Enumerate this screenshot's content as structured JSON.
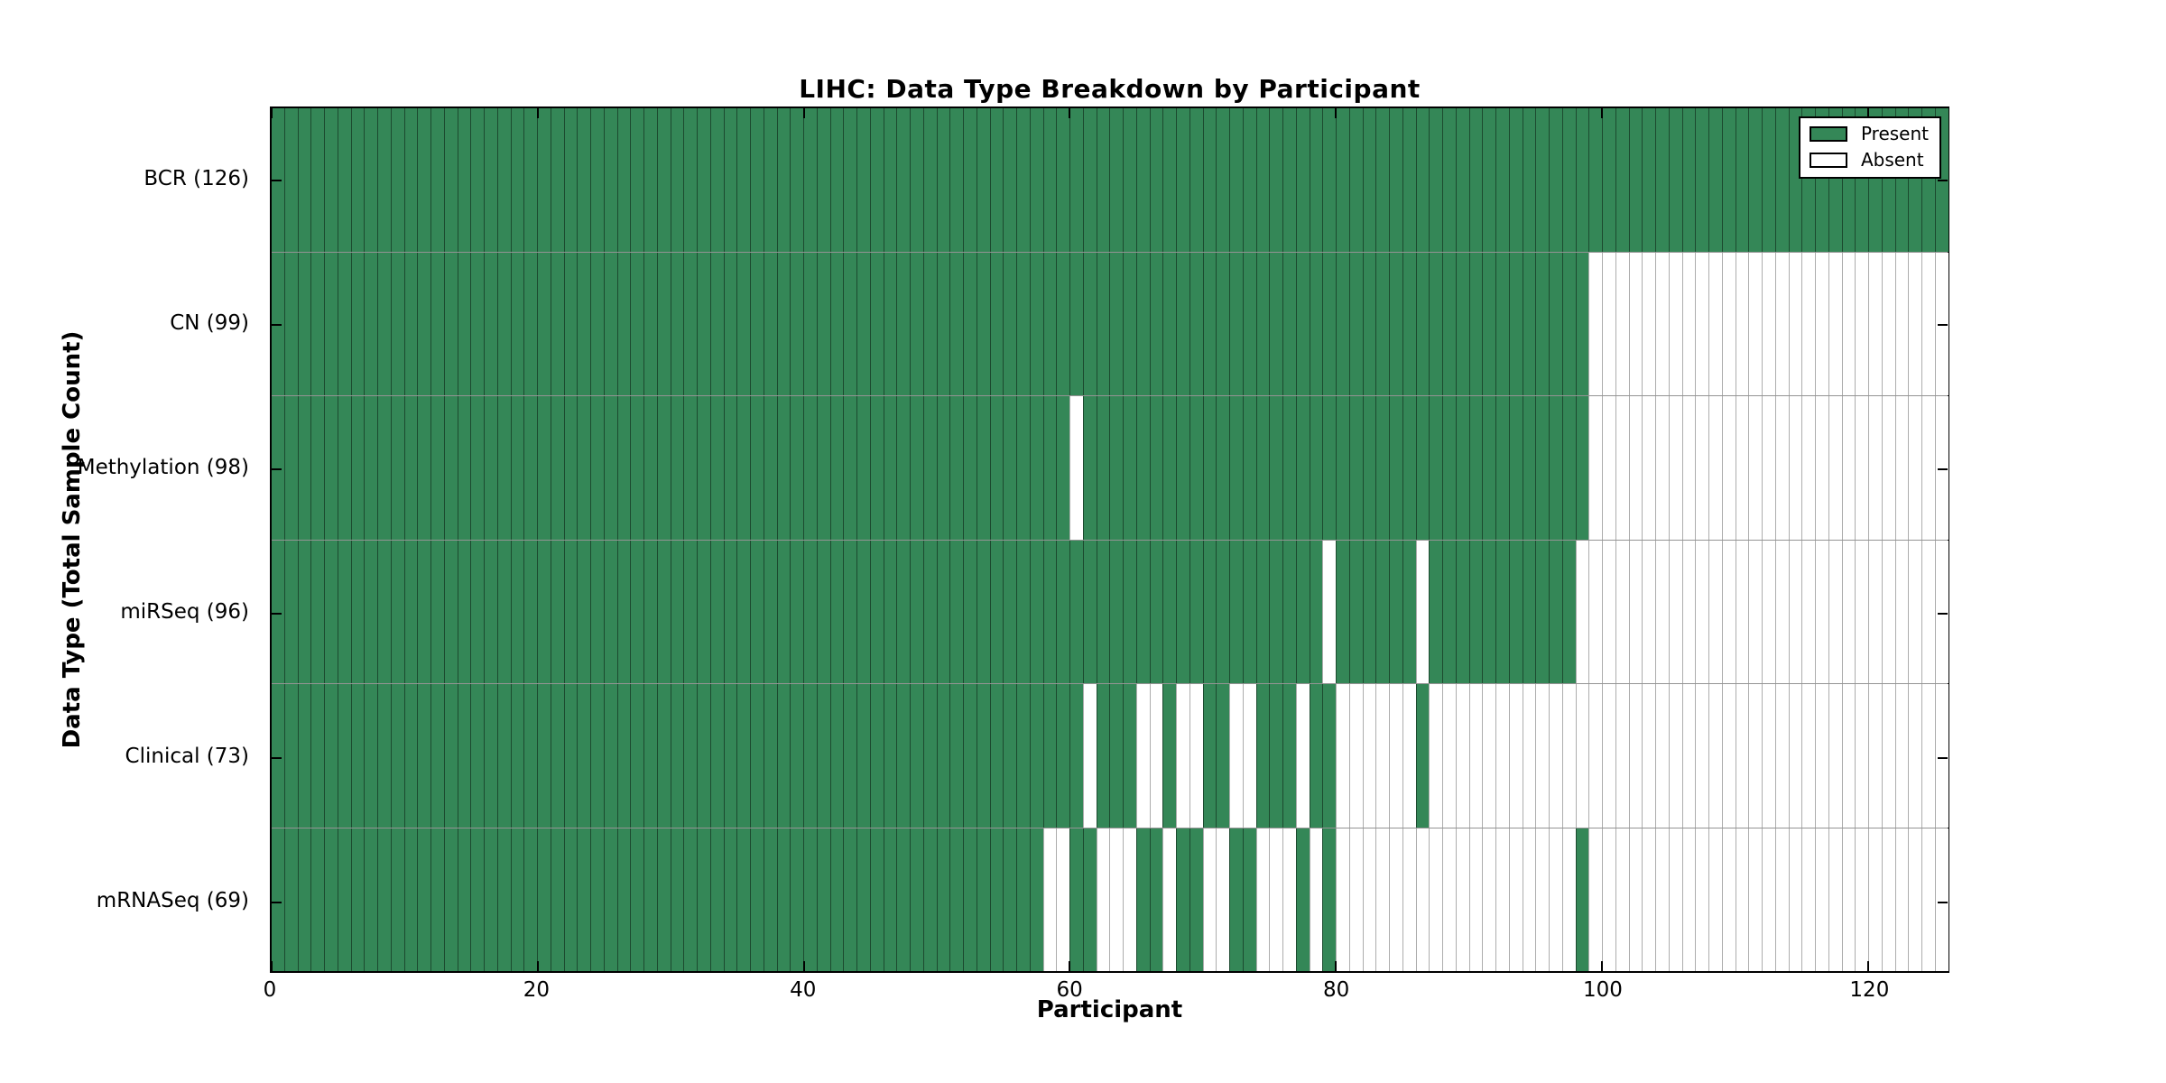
{
  "title": "LIHC: Data Type Breakdown by Participant",
  "xlabel": "Participant",
  "ylabel": "Data Type (Total Sample Count)",
  "legend": {
    "position": "upper right",
    "present_label": "Present",
    "absent_label": "Absent"
  },
  "colors": {
    "present": "#348757",
    "absent": "#ffffff",
    "cell_edge": "rgba(0,0,0,0.45)",
    "spine": "#000000",
    "background": "#ffffff"
  },
  "chart_data": {
    "type": "heatmap",
    "subtype": "presence-absence matrix",
    "x_axis": {
      "label": "Participant",
      "min": 0,
      "max": 126,
      "ticks": [
        0,
        20,
        40,
        60,
        80,
        100,
        120
      ]
    },
    "y_axis": {
      "label": "Data Type (Total Sample Count)"
    },
    "n_participants": 126,
    "grid": false,
    "legend_entries": [
      "Present",
      "Absent"
    ],
    "rows": [
      {
        "label": "BCR (126)",
        "name": "BCR",
        "count": 126,
        "present_ranges": [
          [
            0,
            125
          ]
        ]
      },
      {
        "label": "CN (99)",
        "name": "CN",
        "count": 99,
        "present_ranges": [
          [
            0,
            98
          ]
        ]
      },
      {
        "label": "Methylation (98)",
        "name": "Methylation",
        "count": 98,
        "present_ranges": [
          [
            0,
            59
          ],
          [
            61,
            98
          ]
        ]
      },
      {
        "label": "miRSeq (96)",
        "name": "miRSeq",
        "count": 96,
        "present_ranges": [
          [
            0,
            78
          ],
          [
            80,
            85
          ],
          [
            87,
            97
          ]
        ]
      },
      {
        "label": "Clinical (73)",
        "name": "Clinical",
        "count": 73,
        "present_ranges": [
          [
            0,
            60
          ],
          [
            62,
            64
          ],
          [
            67,
            67
          ],
          [
            70,
            71
          ],
          [
            74,
            76
          ],
          [
            78,
            79
          ],
          [
            86,
            86
          ]
        ]
      },
      {
        "label": "mRNASeq (69)",
        "name": "mRNASeq",
        "count": 69,
        "present_ranges": [
          [
            0,
            57
          ],
          [
            60,
            61
          ],
          [
            65,
            66
          ],
          [
            68,
            69
          ],
          [
            72,
            73
          ],
          [
            77,
            77
          ],
          [
            79,
            79
          ],
          [
            98,
            98
          ]
        ]
      }
    ]
  }
}
